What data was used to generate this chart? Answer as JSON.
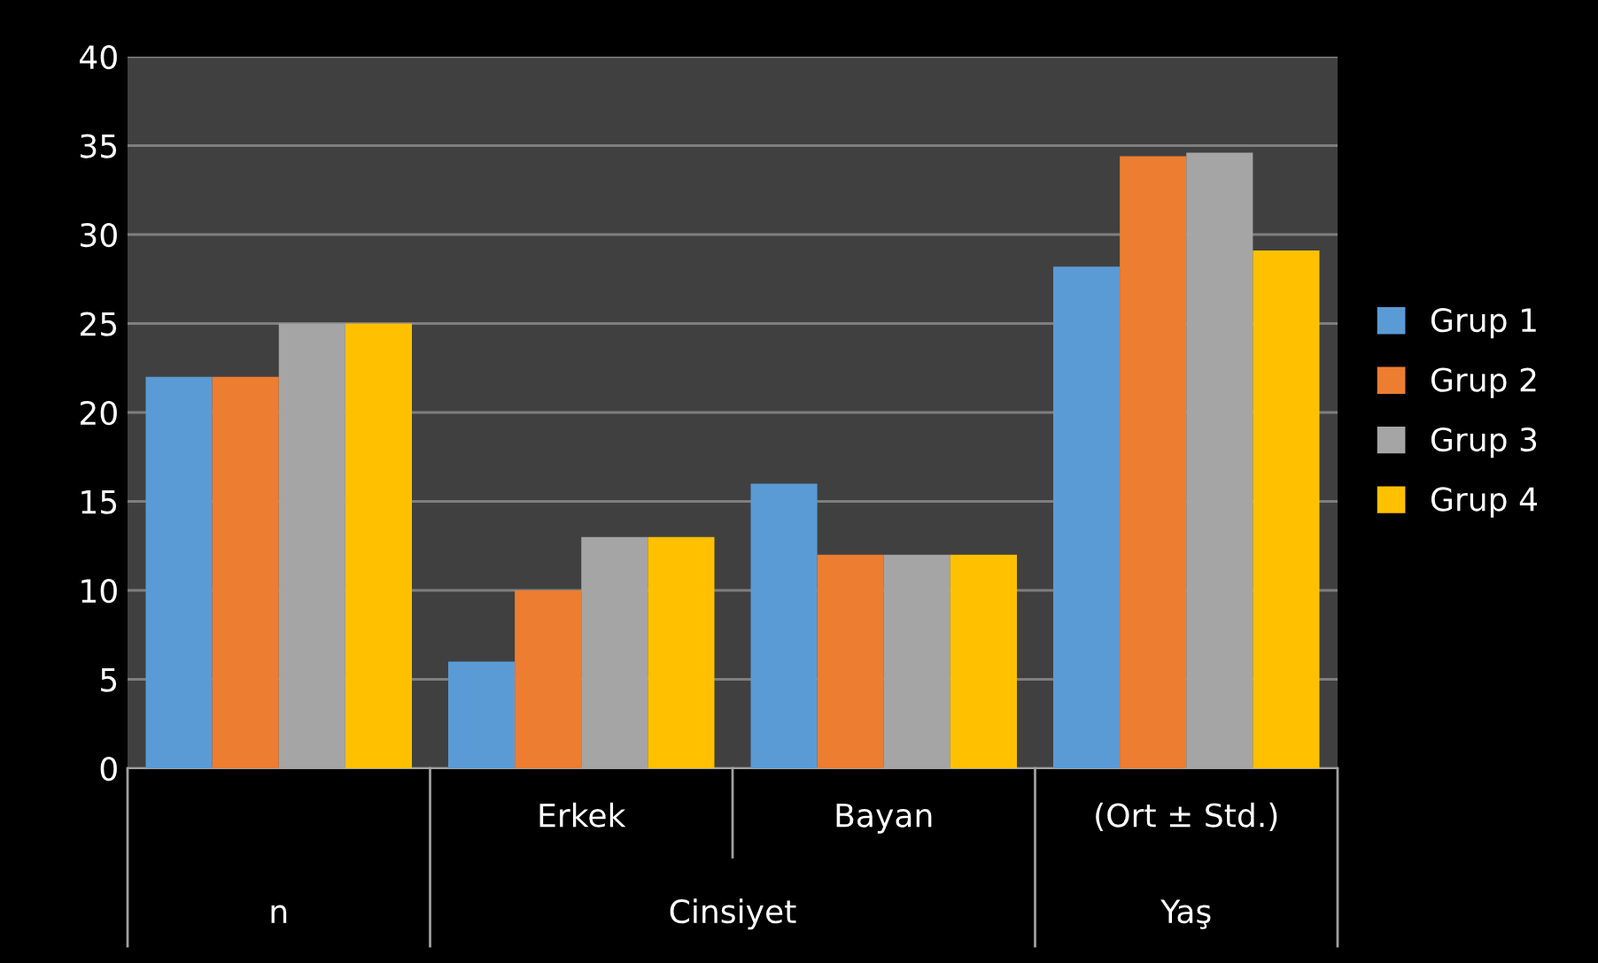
{
  "chart_data": {
    "type": "bar",
    "categories": [
      null,
      "Erkek",
      "Bayan",
      "(Ort ± Std.)"
    ],
    "annotations": [
      "n",
      "Cinsiyet",
      "Yaş"
    ],
    "series": [
      {
        "name": "Grup 1",
        "color": "#5b9bd5",
        "values": [
          22,
          6,
          16,
          28.2
        ]
      },
      {
        "name": "Grup 2",
        "color": "#ed7d31",
        "values": [
          22,
          10,
          12,
          34.4
        ]
      },
      {
        "name": "Grup 3",
        "color": "#a5a5a5",
        "values": [
          25,
          13,
          12,
          34.6
        ]
      },
      {
        "name": "Grup 4",
        "color": "#ffc000",
        "values": [
          25,
          13,
          12,
          29.1
        ]
      }
    ],
    "ylim": [
      0,
      40
    ],
    "yticks": [
      0,
      5,
      10,
      15,
      20,
      25,
      30,
      35,
      40
    ],
    "grid": "y",
    "legend": "right"
  }
}
